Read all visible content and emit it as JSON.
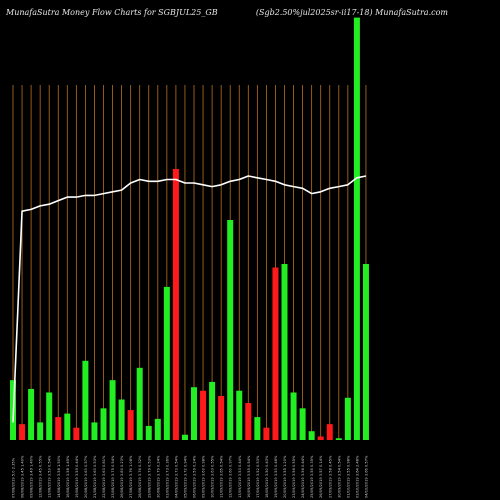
{
  "header": {
    "left": "MunafaSutra  Money Flow  Charts for SGBJUL25_GB",
    "right": "(Sgb2.50%jul2025sr-ii17-18) MunafaSutra.com"
  },
  "colors": {
    "background": "#000000",
    "up": "#22ee22",
    "down": "#ff1a1a",
    "line": "#ffffff",
    "grid": "#b8711e",
    "label": "#cccccc"
  },
  "chart_data": {
    "type": "bar",
    "grid": "vertical",
    "categories": [
      "07/08/2019 5.0 2.35%",
      "08/08/2019 3.45 1.40%",
      "09/08/2019 3.49 1.40%",
      "12/08/2019 3.45 0.55%",
      "13/08/2019 3.53 0.54%",
      "14/08/2019 3.58 1.50%",
      "16/08/2019 3.58 1.45%",
      "19/08/2019 3.59 0.44%",
      "20/08/2019 3.63 0.57%",
      "21/08/2019 3.63 0.53%",
      "22/08/2019 3.63 0.81%",
      "23/08/2019 3.75 0.54%",
      "26/08/2019 3.80 0.23%",
      "27/08/2019 3.76 1.08%",
      "28/08/2019 3.74 0.32%",
      "29/08/2019 3.79 0.53%",
      "30/08/2019 3.79 0.24%",
      "03/09/2019 3.73 0.36%",
      "04/09/2019 3.73 0.54%",
      "05/09/2019 3.72 0.94%",
      "06/09/2019 3.59 0.24%",
      "09/09/2019 3.60 0.98%",
      "10/09/2019 3.63 0.55%",
      "11/09/2019 3.65 0.54%",
      "12/09/2019 3.60 0.97%",
      "13/09/2019 3.53 0.44%",
      "16/09/2019 3.55 0.54%",
      "17/09/2019 3.52 0.53%",
      "18/09/2019 3.50 0.43%",
      "19/09/2019 3.53 0.48%",
      "20/09/2019 3.55 1.20%",
      "23/09/2019 3.56 0.55%",
      "24/09/2019 3.56 0.44%",
      "25/09/2019 3.55 0.35%",
      "26/09/2019 3.57 0.14%",
      "27/09/2019 3.58 0.45%",
      "30/09/2019 3.54 0.54%",
      "01/10/2019 3.55 0.98%",
      "03/10/2019 3.64 2.48%",
      "04/10/2019 3.66 0.57%"
    ],
    "values": [
      34,
      9,
      29,
      10,
      27,
      13,
      15,
      7,
      45,
      10,
      18,
      34,
      23,
      17,
      41,
      8,
      12,
      87,
      154,
      3,
      30,
      28,
      33,
      25,
      125,
      28,
      21,
      13,
      7,
      98,
      100,
      27,
      18,
      5,
      2,
      9,
      1,
      24,
      240,
      100
    ],
    "directions": [
      "up",
      "down",
      "up",
      "up",
      "up",
      "down",
      "up",
      "down",
      "up",
      "up",
      "up",
      "up",
      "up",
      "down",
      "up",
      "up",
      "up",
      "up",
      "down",
      "up",
      "up",
      "down",
      "up",
      "down",
      "up",
      "up",
      "down",
      "up",
      "down",
      "down",
      "up",
      "up",
      "up",
      "up",
      "down",
      "down",
      "up",
      "up",
      "up",
      "up"
    ],
    "price_line": [
      10,
      130,
      131,
      133,
      134,
      136,
      138,
      138,
      139,
      139,
      140,
      141,
      142,
      146,
      148,
      147,
      147,
      148,
      148,
      146,
      146,
      145,
      144,
      145,
      147,
      148,
      150,
      149,
      148,
      147,
      145,
      144,
      143,
      140,
      141,
      143,
      144,
      145,
      149,
      150
    ],
    "ylim": [
      0,
      250
    ]
  }
}
